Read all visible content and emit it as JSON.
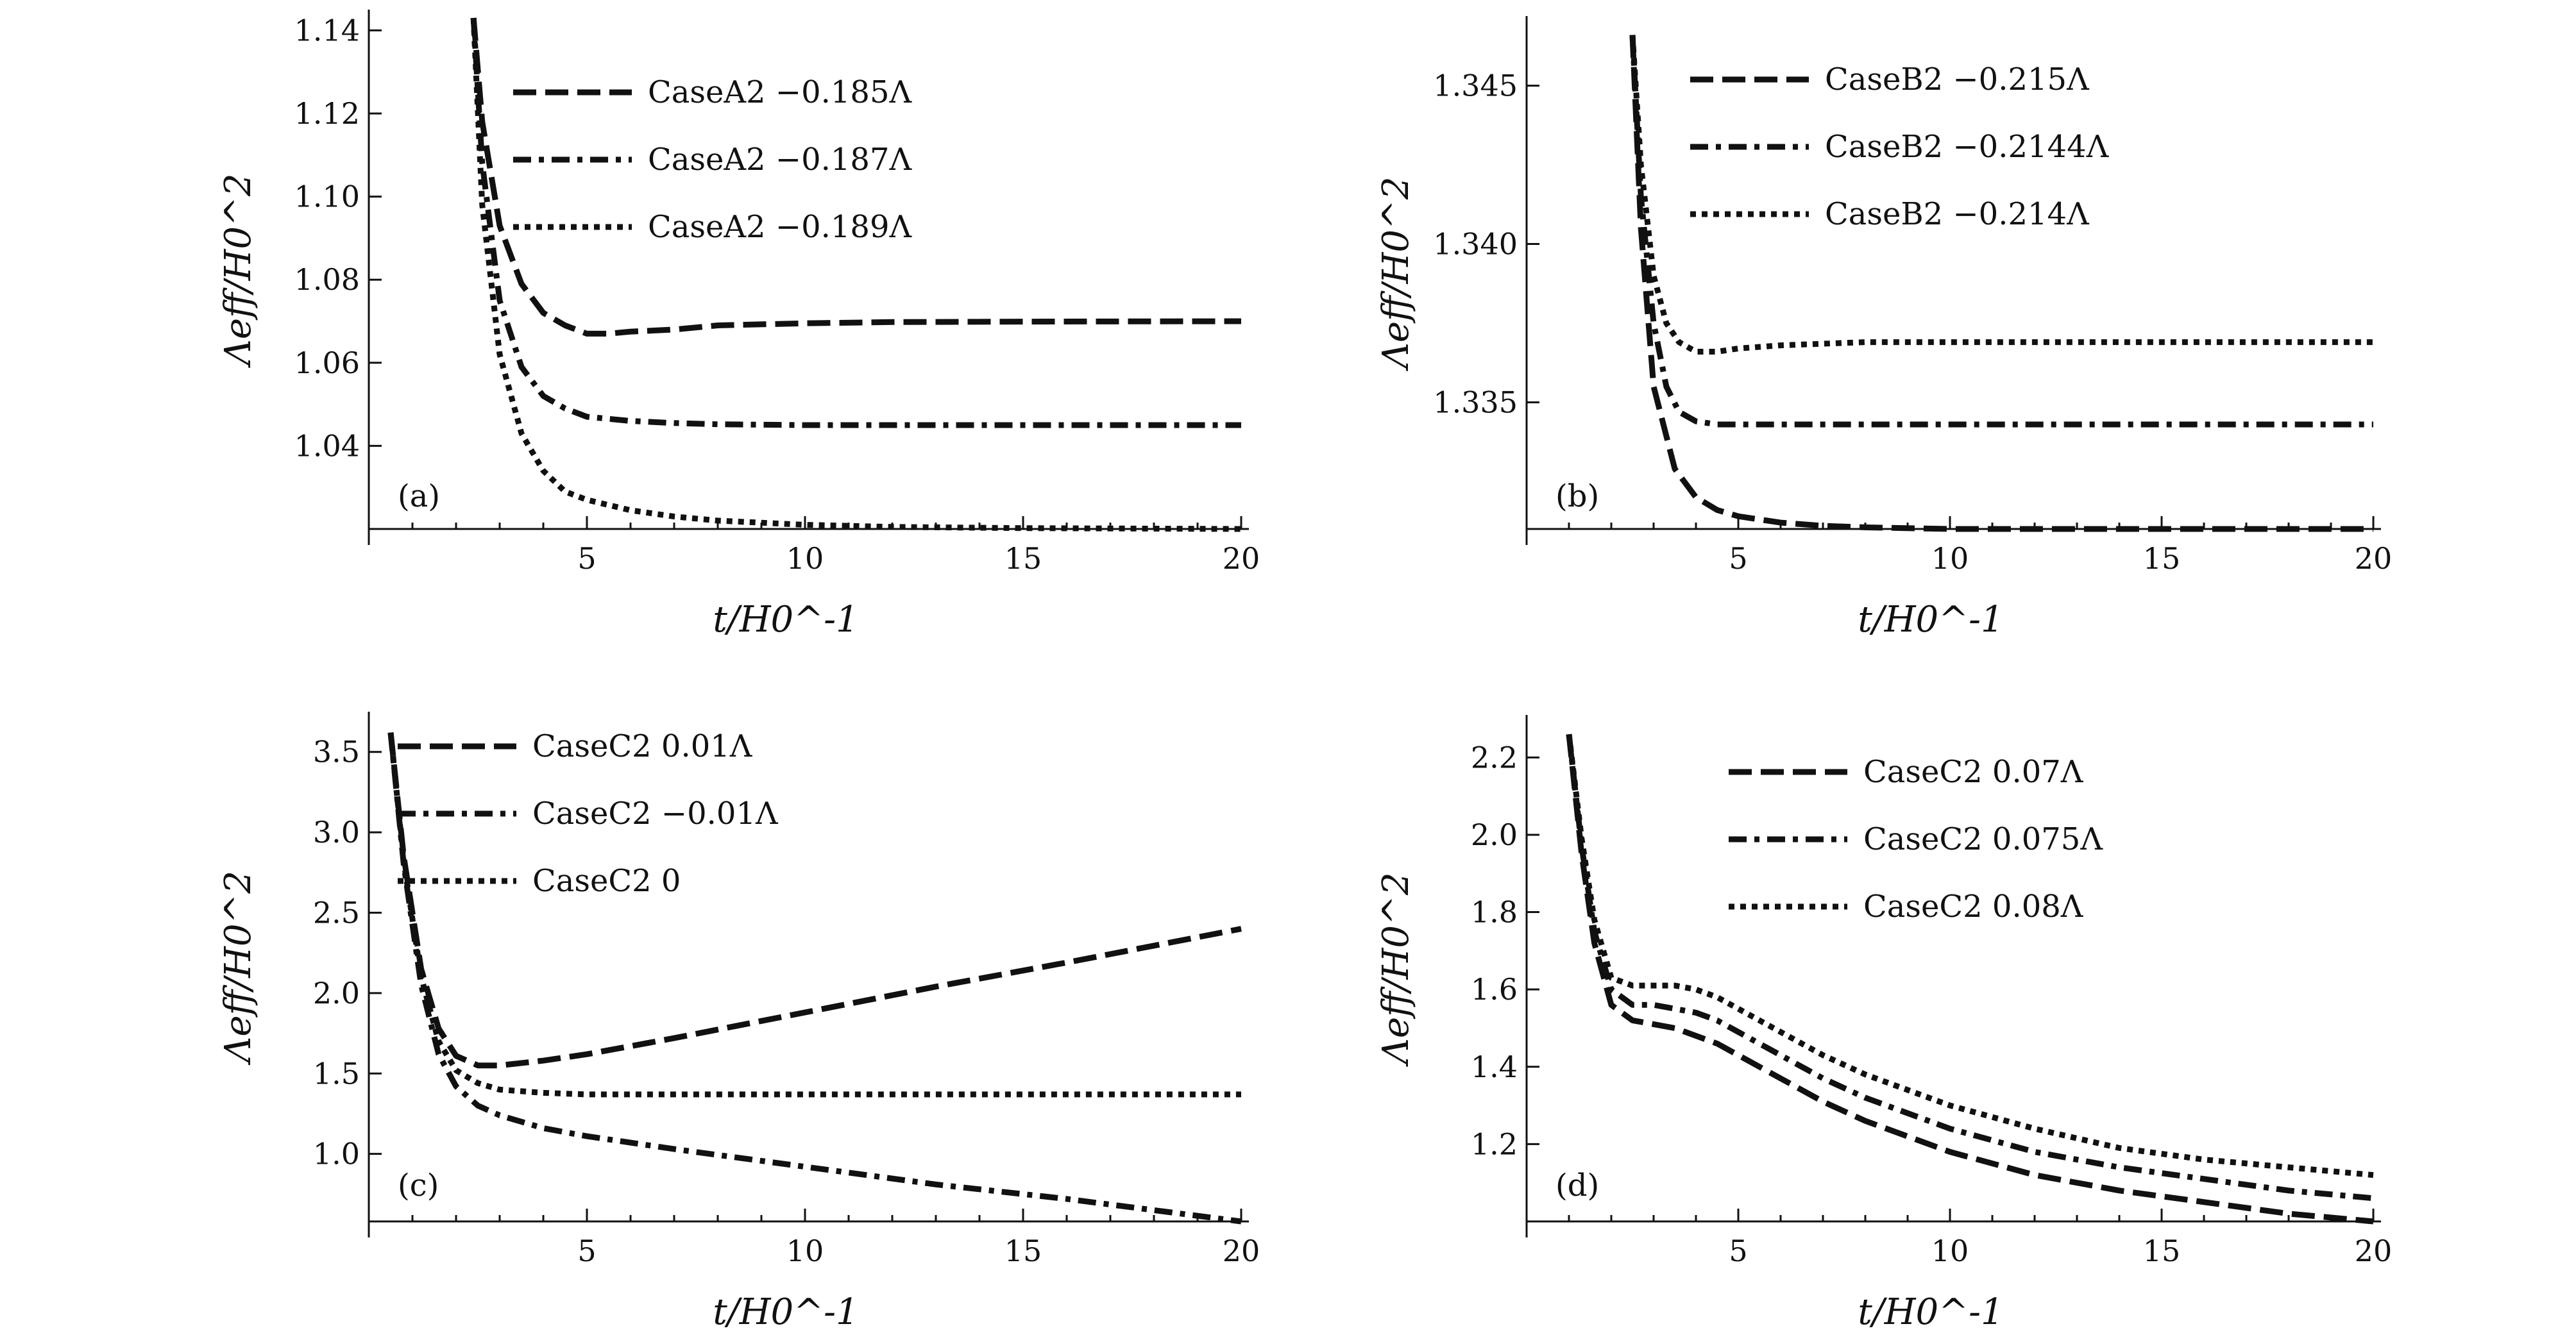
{
  "chart_data": [
    {
      "type": "line",
      "panel_label": "(a)",
      "xlabel": "t/H0^-1",
      "ylabel": "Λeff/H0^2",
      "xlim": [
        0,
        20
      ],
      "ylim": [
        1.02,
        1.145
      ],
      "xticks": [
        5,
        10,
        15,
        20
      ],
      "xtick_labels": [
        "5",
        "10",
        "15",
        "20"
      ],
      "yticks": [
        1.04,
        1.06,
        1.08,
        1.1,
        1.12,
        1.14
      ],
      "ytick_labels": [
        "1.04",
        "1.06",
        "1.08",
        "1.10",
        "1.12",
        "1.14"
      ],
      "legend_position": "top-right",
      "series": [
        {
          "name": "CaseA2 −0.185Λ",
          "style": "dashed",
          "x": [
            2.4,
            2.6,
            3.0,
            3.5,
            4.0,
            4.5,
            5.0,
            5.5,
            6,
            7,
            8,
            10,
            12,
            15,
            20
          ],
          "y": [
            1.143,
            1.118,
            1.093,
            1.079,
            1.072,
            1.069,
            1.067,
            1.067,
            1.0675,
            1.068,
            1.069,
            1.0695,
            1.0698,
            1.0699,
            1.07
          ]
        },
        {
          "name": "CaseA2 −0.187Λ",
          "style": "dashdot",
          "x": [
            2.4,
            2.6,
            3.0,
            3.5,
            4.0,
            4.5,
            5.0,
            6,
            7,
            8,
            10,
            12,
            15,
            20
          ],
          "y": [
            1.143,
            1.108,
            1.075,
            1.059,
            1.052,
            1.049,
            1.047,
            1.046,
            1.0455,
            1.0452,
            1.045,
            1.045,
            1.045,
            1.045
          ]
        },
        {
          "name": "CaseA2 −0.189Λ",
          "style": "dotted",
          "x": [
            2.4,
            2.6,
            3.0,
            3.5,
            4.0,
            4.5,
            5.0,
            6,
            7,
            8,
            10,
            12,
            15,
            20
          ],
          "y": [
            1.143,
            1.098,
            1.062,
            1.043,
            1.034,
            1.029,
            1.027,
            1.0245,
            1.023,
            1.022,
            1.021,
            1.0205,
            1.0202,
            1.02
          ]
        }
      ]
    },
    {
      "type": "line",
      "panel_label": "(b)",
      "xlabel": "t/H0^-1",
      "ylabel": "Λeff/H0^2",
      "xlim": [
        0,
        20
      ],
      "ylim": [
        1.331,
        1.3472
      ],
      "xticks": [
        5,
        10,
        15,
        20
      ],
      "xtick_labels": [
        "5",
        "10",
        "15",
        "20"
      ],
      "yticks": [
        1.335,
        1.34,
        1.345
      ],
      "ytick_labels": [
        "1.335",
        "1.340",
        "1.345"
      ],
      "legend_position": "top-right",
      "series": [
        {
          "name": "CaseB2 −0.215Λ",
          "style": "dashed",
          "x": [
            2.5,
            2.7,
            3.0,
            3.5,
            4.0,
            4.5,
            5.0,
            6,
            7,
            8,
            10,
            12,
            15,
            20
          ],
          "y": [
            1.3466,
            1.3405,
            1.3355,
            1.3329,
            1.332,
            1.3316,
            1.3314,
            1.3312,
            1.3311,
            1.33105,
            1.331,
            1.331,
            1.331,
            1.331
          ]
        },
        {
          "name": "CaseB2 −0.2144Λ",
          "style": "dashdot",
          "x": [
            2.5,
            2.7,
            3.0,
            3.3,
            3.6,
            4.0,
            4.5,
            5.0,
            6,
            8,
            10,
            15,
            20
          ],
          "y": [
            1.3466,
            1.3415,
            1.3375,
            1.3355,
            1.3347,
            1.3344,
            1.3343,
            1.3343,
            1.3343,
            1.3343,
            1.3343,
            1.3343,
            1.3343
          ]
        },
        {
          "name": "CaseB2 −0.214Λ",
          "style": "dotted",
          "x": [
            2.5,
            2.7,
            3.0,
            3.3,
            3.6,
            4.0,
            4.5,
            5.0,
            6,
            8,
            10,
            15,
            20
          ],
          "y": [
            1.3466,
            1.3425,
            1.339,
            1.3375,
            1.3369,
            1.3366,
            1.3366,
            1.3367,
            1.3368,
            1.3369,
            1.3369,
            1.3369,
            1.3369
          ]
        }
      ]
    },
    {
      "type": "line",
      "panel_label": "(c)",
      "xlabel": "t/H0^-1",
      "ylabel": "Λeff/H0^2",
      "xlim": [
        0,
        20
      ],
      "ylim": [
        0.58,
        3.75
      ],
      "xticks": [
        5,
        10,
        15,
        20
      ],
      "xtick_labels": [
        "5",
        "10",
        "15",
        "20"
      ],
      "yticks": [
        1.0,
        1.5,
        2.0,
        2.5,
        3.0,
        3.5
      ],
      "ytick_labels": [
        "1.0",
        "1.5",
        "2.0",
        "2.5",
        "3.0",
        "3.5"
      ],
      "legend_position": "top-left",
      "series": [
        {
          "name": "CaseC2 0.01Λ",
          "style": "dashed",
          "x": [
            0.5,
            0.8,
            1.2,
            1.6,
            2.0,
            2.5,
            3.0,
            4,
            5,
            7,
            10,
            13,
            16,
            20
          ],
          "y": [
            3.62,
            2.85,
            2.15,
            1.78,
            1.61,
            1.55,
            1.55,
            1.58,
            1.62,
            1.72,
            1.88,
            2.04,
            2.19,
            2.4
          ]
        },
        {
          "name": "CaseC2 −0.01Λ",
          "style": "dashdot",
          "x": [
            0.5,
            0.8,
            1.2,
            1.6,
            2.0,
            2.5,
            3.0,
            4,
            5,
            7,
            10,
            13,
            16,
            20
          ],
          "y": [
            3.62,
            2.8,
            2.05,
            1.62,
            1.42,
            1.3,
            1.24,
            1.16,
            1.11,
            1.03,
            0.92,
            0.81,
            0.72,
            0.58
          ]
        },
        {
          "name": "CaseC2 0",
          "style": "dotted",
          "x": [
            0.5,
            0.8,
            1.2,
            1.6,
            2.0,
            2.5,
            3.0,
            4,
            5,
            7,
            10,
            15,
            20
          ],
          "y": [
            3.62,
            2.82,
            2.1,
            1.7,
            1.52,
            1.44,
            1.4,
            1.38,
            1.37,
            1.37,
            1.37,
            1.37,
            1.37
          ]
        }
      ]
    },
    {
      "type": "line",
      "panel_label": "(d)",
      "xlabel": "t/H0^-1",
      "ylabel": "Λeff/H0^2",
      "xlim": [
        0,
        20
      ],
      "ylim": [
        1.0,
        2.31
      ],
      "xticks": [
        5,
        10,
        15,
        20
      ],
      "xtick_labels": [
        "5",
        "10",
        "15",
        "20"
      ],
      "yticks": [
        1.2,
        1.4,
        1.6,
        1.8,
        2.0,
        2.2
      ],
      "ytick_labels": [
        "1.2",
        "1.4",
        "1.6",
        "1.8",
        "2.0",
        "2.2"
      ],
      "legend_position": "top-right",
      "series": [
        {
          "name": "CaseC2 0.07Λ",
          "style": "dashed",
          "x": [
            1.0,
            1.3,
            1.6,
            2.0,
            2.5,
            3.0,
            3.5,
            4.0,
            4.5,
            5,
            6,
            7,
            8,
            10,
            12,
            14,
            16,
            18,
            20
          ],
          "y": [
            2.26,
            1.95,
            1.72,
            1.56,
            1.52,
            1.51,
            1.5,
            1.48,
            1.46,
            1.43,
            1.37,
            1.31,
            1.26,
            1.18,
            1.12,
            1.08,
            1.05,
            1.02,
            1.0
          ]
        },
        {
          "name": "CaseC2 0.075Λ",
          "style": "dashdot",
          "x": [
            1.0,
            1.3,
            1.6,
            2.0,
            2.5,
            3.0,
            3.5,
            4.0,
            4.5,
            5,
            6,
            7,
            8,
            10,
            12,
            14,
            16,
            18,
            20
          ],
          "y": [
            2.26,
            1.97,
            1.75,
            1.6,
            1.56,
            1.56,
            1.55,
            1.54,
            1.52,
            1.49,
            1.43,
            1.37,
            1.32,
            1.24,
            1.18,
            1.14,
            1.11,
            1.08,
            1.06
          ]
        },
        {
          "name": "CaseC2 0.08Λ",
          "style": "dotted",
          "x": [
            1.0,
            1.3,
            1.6,
            2.0,
            2.5,
            3.0,
            3.5,
            4.0,
            4.5,
            5,
            6,
            7,
            8,
            10,
            12,
            14,
            16,
            18,
            20
          ],
          "y": [
            2.26,
            1.99,
            1.78,
            1.63,
            1.61,
            1.61,
            1.61,
            1.6,
            1.58,
            1.55,
            1.49,
            1.43,
            1.38,
            1.3,
            1.24,
            1.19,
            1.16,
            1.14,
            1.12
          ]
        }
      ]
    }
  ]
}
